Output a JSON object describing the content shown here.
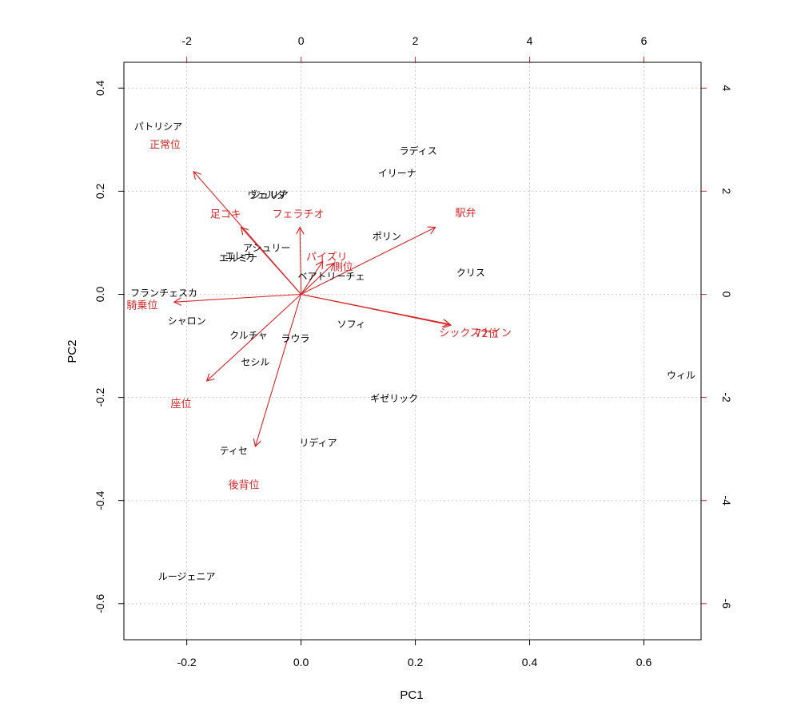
{
  "chart_data": {
    "type": "scatter",
    "subtype": "biplot",
    "title": "",
    "xlabel": "PC1",
    "ylabel": "PC2",
    "xlim": [
      -0.31,
      0.7
    ],
    "ylim": [
      -0.67,
      0.45
    ],
    "x_ticks": [
      "-0.2",
      "0.0",
      "0.2",
      "0.4",
      "0.6"
    ],
    "x_tick_values": [
      -0.2,
      0.0,
      0.2,
      0.4,
      0.6
    ],
    "y_ticks": [
      "-0.6",
      "-0.4",
      "-0.2",
      "0.0",
      "0.2",
      "0.4"
    ],
    "y_tick_values": [
      -0.6,
      -0.4,
      -0.2,
      0.0,
      0.2,
      0.4
    ],
    "top_axis_ticks": [
      "-2",
      "0",
      "2",
      "4",
      "6"
    ],
    "top_axis_values": [
      -2,
      0,
      2,
      4,
      6
    ],
    "right_axis_ticks": [
      "-6",
      "-4",
      "-2",
      "0",
      "2",
      "4"
    ],
    "right_axis_values": [
      -6,
      -4,
      -2,
      0,
      2,
      4
    ],
    "grid": true,
    "observation_color": "#000000",
    "variable_color": "#d62728",
    "grid_color": "#c8c8c8",
    "observations": [
      {
        "label": "パトリシア",
        "x": -0.25,
        "y": 0.325
      },
      {
        "label": "ラディス",
        "x": 0.205,
        "y": 0.278
      },
      {
        "label": "イリーナ",
        "x": 0.168,
        "y": 0.235
      },
      {
        "label": "ヴェルダ",
        "x": -0.06,
        "y": 0.193
      },
      {
        "label": "ジュリア",
        "x": -0.055,
        "y": 0.192
      },
      {
        "label": "ポリン",
        "x": 0.15,
        "y": 0.112
      },
      {
        "label": "アシュリー",
        "x": -0.06,
        "y": 0.09
      },
      {
        "label": "エレナ",
        "x": -0.108,
        "y": 0.074
      },
      {
        "label": "エルミナ",
        "x": -0.11,
        "y": 0.07
      },
      {
        "label": "ベアトリーチェ",
        "x": 0.053,
        "y": 0.035
      },
      {
        "label": "クリス",
        "x": 0.297,
        "y": 0.042
      },
      {
        "label": "フランチェスカ",
        "x": -0.24,
        "y": 0.002
      },
      {
        "label": "シャロン",
        "x": -0.2,
        "y": -0.052
      },
      {
        "label": "ソフィ",
        "x": 0.088,
        "y": -0.058
      },
      {
        "label": "クルチャ",
        "x": -0.092,
        "y": -0.08
      },
      {
        "label": "ラウラ",
        "x": -0.01,
        "y": -0.086
      },
      {
        "label": "セシル",
        "x": -0.08,
        "y": -0.132
      },
      {
        "label": "ウィル",
        "x": 0.665,
        "y": -0.157
      },
      {
        "label": "ギゼリック",
        "x": 0.163,
        "y": -0.202
      },
      {
        "label": "リディア",
        "x": 0.03,
        "y": -0.288
      },
      {
        "label": "ティセ",
        "x": -0.118,
        "y": -0.304
      },
      {
        "label": "ルージェニア",
        "x": -0.2,
        "y": -0.548
      }
    ],
    "variables": [
      {
        "label": "正常位",
        "x": -0.188,
        "y": 0.238,
        "lx": -0.238,
        "ly": 0.29
      },
      {
        "label": "足コキ",
        "x": -0.105,
        "y": 0.13,
        "lx": -0.132,
        "ly": 0.155
      },
      {
        "label": "フェラチオ",
        "x": -0.002,
        "y": 0.13,
        "lx": -0.005,
        "ly": 0.155
      },
      {
        "label": "パイズリ",
        "x": 0.038,
        "y": 0.064,
        "lx": 0.045,
        "ly": 0.072
      },
      {
        "label": "側位",
        "x": 0.057,
        "y": 0.06,
        "lx": 0.073,
        "ly": 0.053
      },
      {
        "label": "駅弁",
        "x": 0.235,
        "y": 0.13,
        "lx": 0.288,
        "ly": 0.157
      },
      {
        "label": "騎乗位",
        "x": -0.222,
        "y": -0.015,
        "lx": -0.278,
        "ly": -0.022
      },
      {
        "label": "シックスナイン",
        "x": 0.26,
        "y": -0.058,
        "lx": 0.305,
        "ly": -0.075
      },
      {
        "label": "72位",
        "x": 0.262,
        "y": -0.06,
        "lx": 0.325,
        "ly": -0.077
      },
      {
        "label": "座位",
        "x": -0.165,
        "y": -0.168,
        "lx": -0.21,
        "ly": -0.213
      },
      {
        "label": "後背位",
        "x": -0.08,
        "y": -0.295,
        "lx": -0.1,
        "ly": -0.37
      }
    ]
  }
}
